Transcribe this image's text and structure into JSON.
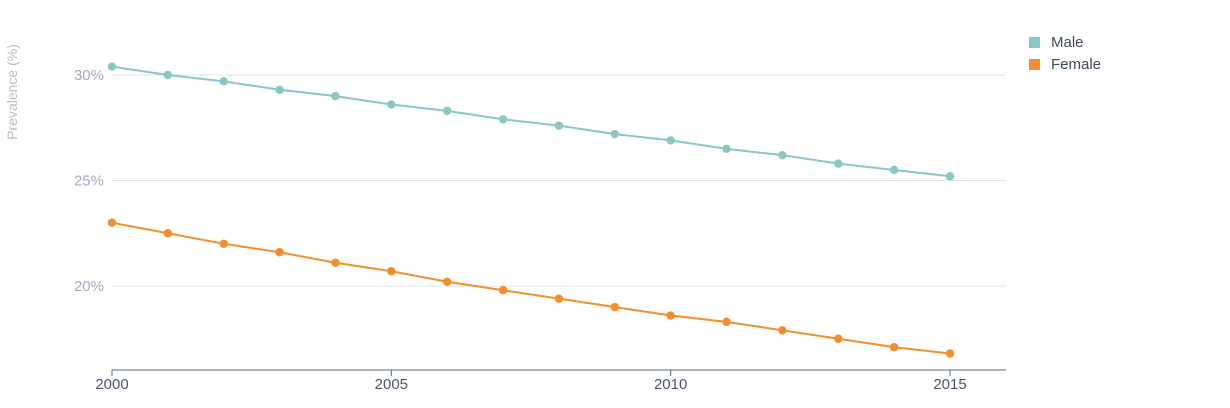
{
  "chart_data": {
    "type": "line",
    "title": "",
    "xlabel": "",
    "ylabel": "Prevalence (%)",
    "x": [
      2000,
      2001,
      2002,
      2003,
      2004,
      2005,
      2006,
      2007,
      2008,
      2009,
      2010,
      2011,
      2012,
      2013,
      2014,
      2015
    ],
    "xlim": [
      2000,
      2016
    ],
    "x_ticks": [
      2000,
      2005,
      2010,
      2015
    ],
    "x_tick_labels": [
      "2000",
      "2005",
      "2010",
      "2015"
    ],
    "ylim": [
      16,
      33
    ],
    "y_ticks": [
      20,
      25,
      30
    ],
    "y_tick_labels": [
      "20%",
      "25%",
      "30%"
    ],
    "grid": true,
    "legend_position": "top-right",
    "series": [
      {
        "name": "Male",
        "color": "#8ac6c6",
        "values": [
          30.4,
          30.0,
          29.7,
          29.3,
          29.0,
          28.6,
          28.3,
          27.9,
          27.6,
          27.2,
          26.9,
          26.5,
          26.2,
          25.8,
          25.5,
          25.2
        ]
      },
      {
        "name": "Female",
        "color": "#f48d2d",
        "values": [
          23.0,
          22.5,
          22.0,
          21.6,
          21.1,
          20.7,
          20.2,
          19.8,
          19.4,
          19.0,
          18.6,
          18.3,
          17.9,
          17.5,
          17.1,
          16.8
        ]
      }
    ]
  }
}
